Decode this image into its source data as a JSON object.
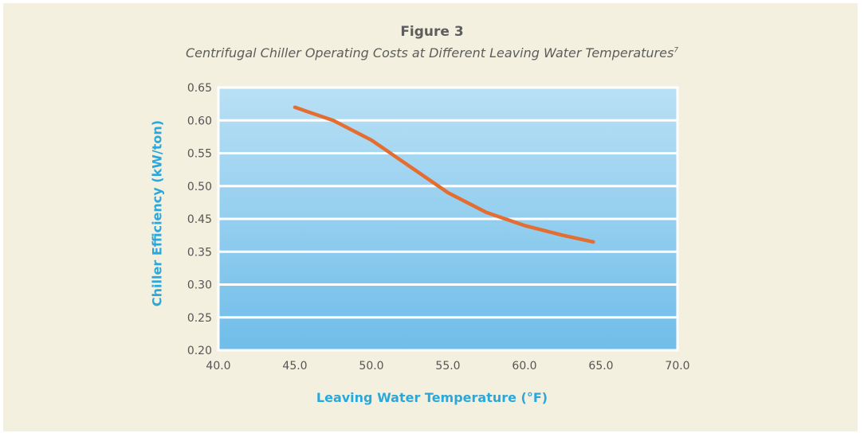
{
  "colors": {
    "background": "#f4f0df",
    "plot_top": "#b9e0f5",
    "plot_bottom": "#6fbde9",
    "gridline": "#ffffff",
    "line": "#e46e32",
    "axis_label": "#2aa8dc",
    "title": "#5d5d5d"
  },
  "figure": {
    "title": "Figure 3",
    "subtitle": "Centrifugal Chiller Operating Costs at Different Leaving Water Temperatures",
    "subtitle_note": "7"
  },
  "chart_data": {
    "type": "line",
    "title": "Centrifugal Chiller Operating Costs at Different Leaving Water Temperatures",
    "xlabel": "Leaving Water Temperature (°F)",
    "ylabel": "Chiller Efficiency (kW/ton)",
    "xlim": [
      40,
      70
    ],
    "xticks": [
      "40.0",
      "45.0",
      "50.0",
      "55.0",
      "60.0",
      "65.0",
      "70.0"
    ],
    "yticks": [
      "0.20",
      "0.25",
      "0.30",
      "0.35",
      "0.45",
      "0.50",
      "0.55",
      "0.60",
      "0.65"
    ],
    "grid": true,
    "legend": "none",
    "series": [
      {
        "x": [
          45.0,
          47.5,
          50.0,
          52.5,
          55.0,
          57.5,
          60.0,
          62.5,
          64.5
        ],
        "y": [
          0.62,
          0.6,
          0.57,
          0.53,
          0.49,
          0.46,
          0.43,
          0.4,
          0.38
        ]
      }
    ]
  }
}
